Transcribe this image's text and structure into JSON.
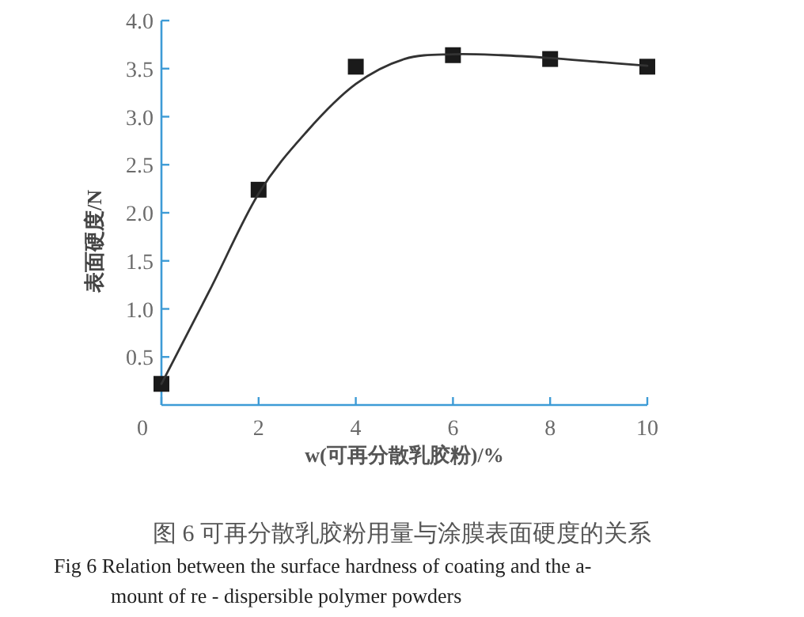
{
  "chart_data": {
    "type": "scatter",
    "xlabel": "w(可再分散乳胶粉)/%",
    "ylabel": "表面硬度/N",
    "xlim": [
      0,
      10
    ],
    "xticks": [
      0,
      2,
      4,
      6,
      8,
      10
    ],
    "ylim": [
      0,
      4.0
    ],
    "yticks": [
      {
        "value": 0.5,
        "label": "0.5"
      },
      {
        "value": 1,
        "label": "1.0"
      },
      {
        "value": 1.5,
        "label": "1.5"
      },
      {
        "value": 2,
        "label": "2.0"
      },
      {
        "value": 2.5,
        "label": "2.5"
      },
      {
        "value": 3,
        "label": "3.0"
      },
      {
        "value": 3.5,
        "label": "3.5"
      },
      {
        "value": 4,
        "label": "4.0"
      }
    ],
    "x": [
      0,
      2,
      4,
      6,
      8,
      10
    ],
    "series": [
      {
        "color": "#1a1a1a",
        "marker": "square",
        "values": [
          0.22,
          2.24,
          3.52,
          3.64,
          3.6,
          3.52
        ]
      },
      {
        "type": "line",
        "color": "#333333",
        "line_style": "solid",
        "x": [
          0,
          1,
          2,
          3,
          4,
          5,
          6,
          7,
          8,
          9,
          10
        ],
        "values": [
          0.22,
          1.2,
          2.2,
          2.85,
          3.34,
          3.6,
          3.65,
          3.64,
          3.61,
          3.57,
          3.53
        ]
      }
    ],
    "grid": false,
    "annotations": [
      "图 6 可再分散乳胶粉用量与涂膜表面硬度的关系",
      "Fig 6   Relation between the surface hardness of coating and the a-",
      "mount of re - dispersible polymer powders"
    ]
  }
}
